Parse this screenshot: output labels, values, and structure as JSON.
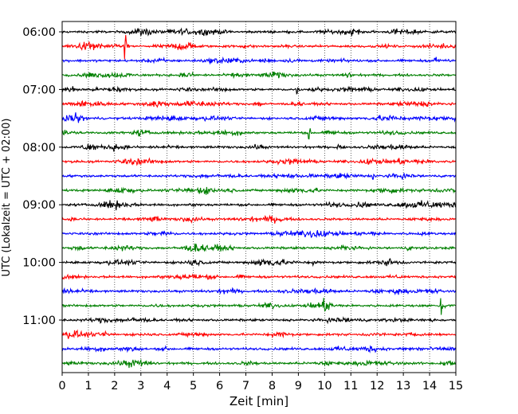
{
  "chart_data": {
    "type": "line",
    "subtype": "helicorder",
    "xlabel": "Zeit  [min]",
    "ylabel": "UTC (Lokalzeit = UTC + 02:00)",
    "xlim": [
      0,
      15
    ],
    "xticks": [
      "0",
      "1",
      "2",
      "3",
      "4",
      "5",
      "6",
      "7",
      "8",
      "9",
      "10",
      "11",
      "12",
      "13",
      "14",
      "15"
    ],
    "x_grid": "dotted",
    "y_tick_labels": [
      "06:00",
      "07:00",
      "08:00",
      "09:00",
      "10:00",
      "11:00"
    ],
    "trace_interval_minutes": 15,
    "trace_start_times": [
      "06:00",
      "06:15",
      "06:30",
      "06:45",
      "07:00",
      "07:15",
      "07:30",
      "07:45",
      "08:00",
      "08:15",
      "08:30",
      "08:45",
      "09:00",
      "09:15",
      "09:30",
      "09:45",
      "10:00",
      "10:15",
      "10:30",
      "10:45",
      "11:00",
      "11:15",
      "11:30",
      "11:45"
    ],
    "trace_colors": [
      "#000000",
      "#ff0000",
      "#0000ff",
      "#008000"
    ],
    "events": [
      {
        "trace": 1,
        "minute": 2.4,
        "amplitude": 2.2
      },
      {
        "trace": 2,
        "minute": 14.2,
        "amplitude": 1.3
      },
      {
        "trace": 3,
        "minute": 1.0,
        "amplitude": 1.1
      },
      {
        "trace": 4,
        "minute": 8.95,
        "amplitude": 1.0
      },
      {
        "trace": 7,
        "minute": 9.4,
        "amplitude": 1.0
      },
      {
        "trace": 8,
        "minute": 10.5,
        "amplitude": 0.8
      },
      {
        "trace": 10,
        "minute": 11.85,
        "amplitude": 0.9
      },
      {
        "trace": 19,
        "minute": 14.45,
        "amplitude": 2.0
      },
      {
        "trace": 22,
        "minute": 3.0,
        "amplitude": 0.8
      }
    ]
  }
}
